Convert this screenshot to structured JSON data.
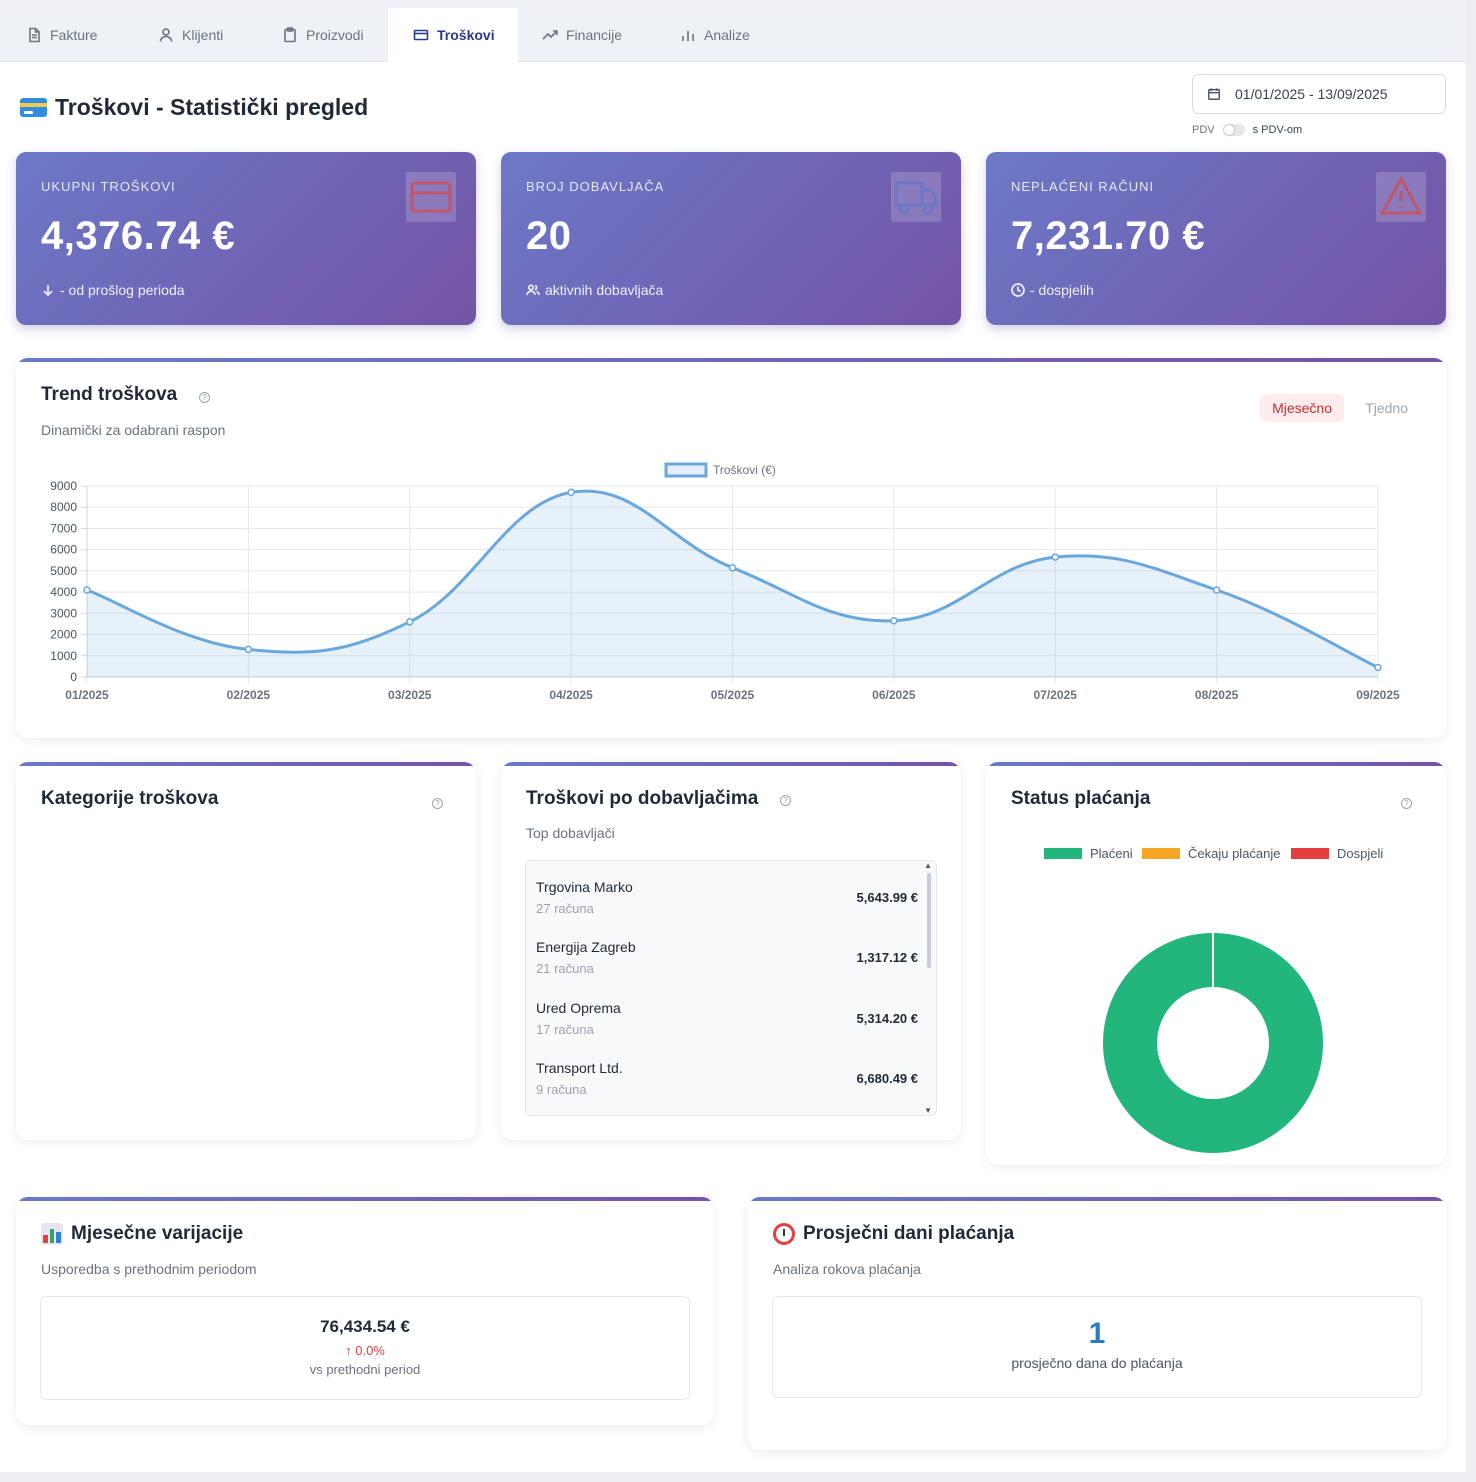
{
  "tabs": [
    {
      "label": "Fakture",
      "icon": "document-icon"
    },
    {
      "label": "Klijenti",
      "icon": "user-icon"
    },
    {
      "label": "Proizvodi",
      "icon": "clipboard-icon"
    },
    {
      "label": "Troškovi",
      "icon": "credit-card-icon",
      "active": true
    },
    {
      "label": "Financije",
      "icon": "trending-up-icon"
    },
    {
      "label": "Analize",
      "icon": "bar-chart-icon"
    }
  ],
  "header": {
    "title": "Troškovi - Statistički pregled",
    "date_range": "01/01/2025 - 13/09/2025",
    "pdv_label": "PDV",
    "pdv_toggle_label": "s PDV-om"
  },
  "stats": [
    {
      "label": "UKUPNI TROŠKOVI",
      "value": "4,376.74 €",
      "sub": "- od prošlog perioda",
      "sub_icon": "arrow-down-icon",
      "icon": "credit-card-icon",
      "icon_color": "#c0556b"
    },
    {
      "label": "BROJ DOBAVLJAČA",
      "value": "20",
      "sub": "aktivnih dobavljača",
      "sub_icon": "users-icon",
      "icon": "truck-icon",
      "icon_color": "#6b78c4"
    },
    {
      "label": "NEPLAĆENI RAČUNI",
      "value": "7,231.70 €",
      "sub": "- dospjelih",
      "sub_icon": "clock-icon",
      "icon": "warning-icon",
      "icon_color": "#c0556b"
    }
  ],
  "trend": {
    "title": "Trend troškova",
    "subtitle": "Dinamički za odabrani raspon",
    "toggle_monthly": "Mjesečno",
    "toggle_weekly": "Tjedno"
  },
  "chart_data": {
    "type": "area",
    "x": [
      "01/2025",
      "02/2025",
      "03/2025",
      "04/2025",
      "05/2025",
      "06/2025",
      "07/2025",
      "08/2025",
      "09/2025"
    ],
    "series": [
      {
        "name": "Troškovi (€)",
        "values": [
          4100,
          1300,
          2600,
          8700,
          5150,
          2650,
          5650,
          4100,
          450
        ],
        "color": "#6aa7dc"
      }
    ],
    "ylim": [
      0,
      9000
    ],
    "yticks": [
      "0",
      "1000",
      "2000",
      "3000",
      "4000",
      "5000",
      "6000",
      "7000",
      "8000",
      "9000"
    ],
    "grid": true,
    "legend": "top-center"
  },
  "categories_panel": {
    "title": "Kategorije troškova"
  },
  "suppliers_panel": {
    "title": "Troškovi po dobavljačima",
    "subtitle": "Top dobavljači",
    "rows": [
      {
        "name": "Trgovina Marko",
        "count": "27 računa",
        "amount": "5,643.99 €"
      },
      {
        "name": "Energija Zagreb",
        "count": "21 računa",
        "amount": "1,317.12 €"
      },
      {
        "name": "Ured Oprema",
        "count": "17 računa",
        "amount": "5,314.20 €"
      },
      {
        "name": "Transport Ltd.",
        "count": "9 računa",
        "amount": "6,680.49 €"
      }
    ]
  },
  "status_panel": {
    "title": "Status plaćanja",
    "legend": [
      {
        "label": "Plaćeni",
        "color": "#22b67c",
        "value": 100
      },
      {
        "label": "Čekaju plaćanje",
        "color": "#f5a623",
        "value": 0
      },
      {
        "label": "Dospjeli",
        "color": "#e53e3e",
        "value": 0
      }
    ]
  },
  "variations_panel": {
    "title": "Mjesečne varijacije",
    "subtitle": "Usporedba s prethodnim periodom",
    "amount": "76,434.54 €",
    "change": "↑ 0.0%",
    "note": "vs prethodni period"
  },
  "payment_days_panel": {
    "title": "Prosječni dani plaćanja",
    "subtitle": "Analiza rokova plaćanja",
    "value": "1",
    "note": "prosječno dana do plaćanja"
  }
}
